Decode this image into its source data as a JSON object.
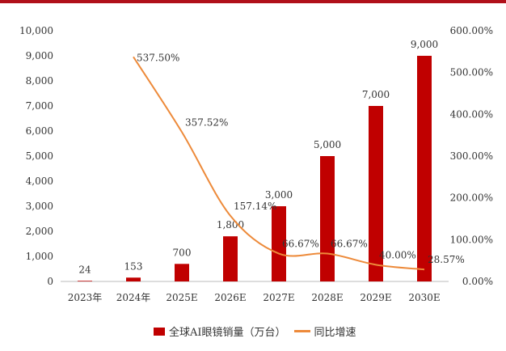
{
  "chart_data": {
    "type": "bar+line",
    "categories": [
      "2023年",
      "2024年",
      "2025E",
      "2026E",
      "2027E",
      "2028E",
      "2029E",
      "2030E"
    ],
    "series": [
      {
        "name": "全球AI眼镜销量（万台）",
        "type": "bar",
        "axis": "left",
        "values": [
          24,
          153,
          700,
          1800,
          3000,
          5000,
          7000,
          9000
        ],
        "labels": [
          "24",
          "153",
          "700",
          "1,800",
          "3,000",
          "5,000",
          "7,000",
          "9,000"
        ],
        "color": "#c00000"
      },
      {
        "name": "同比增速",
        "type": "line",
        "axis": "right",
        "values": [
          null,
          537.5,
          357.52,
          157.14,
          66.67,
          66.67,
          40.0,
          28.57
        ],
        "labels": [
          "",
          "537.50%",
          "357.52%",
          "157.14%",
          "66.67%",
          "66.67%",
          "40.00%",
          "28.57%"
        ],
        "color": "#ed8a3a"
      }
    ],
    "left_axis": {
      "ylim": [
        0,
        10000
      ],
      "ticks": [
        "0",
        "1,000",
        "2,000",
        "3,000",
        "4,000",
        "5,000",
        "6,000",
        "7,000",
        "8,000",
        "9,000",
        "10,000"
      ]
    },
    "right_axis": {
      "ylim": [
        0,
        600
      ],
      "ticks": [
        "0.00%",
        "100.00%",
        "200.00%",
        "300.00%",
        "400.00%",
        "500.00%",
        "600.00%"
      ]
    },
    "grid": false,
    "legend": "bottom"
  }
}
